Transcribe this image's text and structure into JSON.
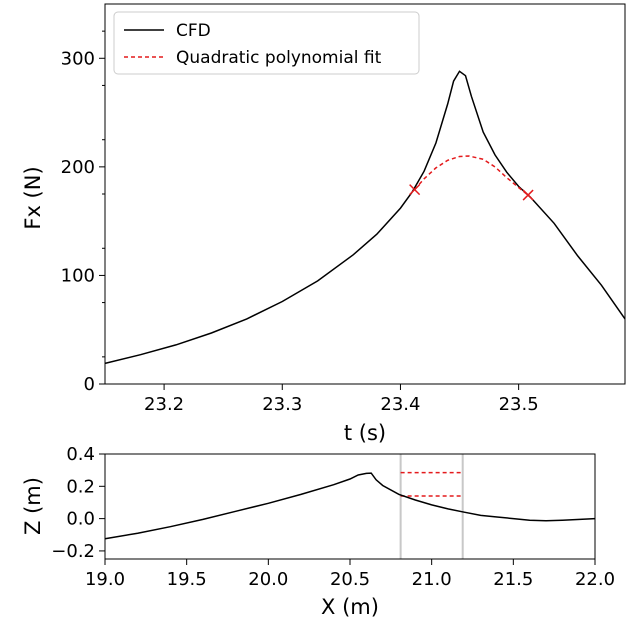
{
  "chart_data": [
    {
      "type": "line",
      "xlabel": "t (s)",
      "ylabel": "Fx (N)",
      "xlim": [
        23.15,
        23.59
      ],
      "ylim": [
        0,
        350
      ],
      "xticks": [
        "23.2",
        "23.3",
        "23.4",
        "23.5"
      ],
      "yticks": [
        "0",
        "100",
        "200",
        "300"
      ],
      "legend": {
        "placement": "top-left",
        "entries": [
          "CFD",
          "Quadratic polynomial fit"
        ]
      },
      "series": [
        {
          "name": "CFD",
          "color": "#000000",
          "style": "solid",
          "x": [
            23.15,
            23.18,
            23.21,
            23.24,
            23.27,
            23.3,
            23.33,
            23.36,
            23.38,
            23.4,
            23.41,
            23.42,
            23.43,
            23.44,
            23.445,
            23.45,
            23.455,
            23.46,
            23.47,
            23.48,
            23.49,
            23.5,
            23.51,
            23.53,
            23.55,
            23.57,
            23.59
          ],
          "y": [
            19,
            27,
            36,
            47,
            60,
            76,
            95,
            119,
            138,
            162,
            177,
            196,
            222,
            258,
            279,
            288,
            284,
            265,
            232,
            211,
            195,
            182,
            172,
            148,
            118,
            91,
            60
          ]
        },
        {
          "name": "Quadratic polynomial fit",
          "color": "#e41a1c",
          "style": "dashed",
          "x": [
            23.412,
            23.42,
            23.43,
            23.44,
            23.45,
            23.458,
            23.47,
            23.48,
            23.49,
            23.5,
            23.508
          ],
          "y": [
            179,
            189,
            199,
            206,
            209.5,
            210,
            207,
            200,
            190,
            181,
            174
          ]
        }
      ],
      "markers": {
        "color": "#e41a1c",
        "shape": "x",
        "points": [
          {
            "x": 23.412,
            "y": 179
          },
          {
            "x": 23.508,
            "y": 174
          }
        ]
      }
    },
    {
      "type": "line",
      "xlabel": "X (m)",
      "ylabel": "Z (m)",
      "xlim": [
        19.0,
        22.0
      ],
      "ylim": [
        -0.25,
        0.4
      ],
      "xticks": [
        "19.0",
        "19.5",
        "20.0",
        "20.5",
        "21.0",
        "21.5",
        "22.0"
      ],
      "yticks": [
        "−0.2",
        "0.0",
        "0.2",
        "0.4"
      ],
      "series": [
        {
          "color": "#000000",
          "style": "solid",
          "x": [
            19.0,
            19.2,
            19.4,
            19.6,
            19.8,
            20.0,
            20.2,
            20.4,
            20.5,
            20.55,
            20.6,
            20.63,
            20.66,
            20.7,
            20.8,
            20.9,
            21.0,
            21.1,
            21.2,
            21.3,
            21.4,
            21.5,
            21.6,
            21.7,
            21.8,
            22.0
          ],
          "y": [
            -0.125,
            -0.09,
            -0.05,
            -0.005,
            0.045,
            0.095,
            0.15,
            0.21,
            0.245,
            0.27,
            0.28,
            0.282,
            0.24,
            0.205,
            0.15,
            0.115,
            0.085,
            0.06,
            0.04,
            0.02,
            0.01,
            0.0,
            -0.01,
            -0.013,
            -0.01,
            0.0
          ]
        }
      ],
      "vlines": {
        "color": "#c8c8c8",
        "x": [
          20.81,
          21.19
        ]
      },
      "hsegments": {
        "color": "#e41a1c",
        "style": "dashed",
        "x": [
          20.81,
          21.19
        ],
        "y": [
          0.285,
          0.14
        ]
      }
    }
  ]
}
